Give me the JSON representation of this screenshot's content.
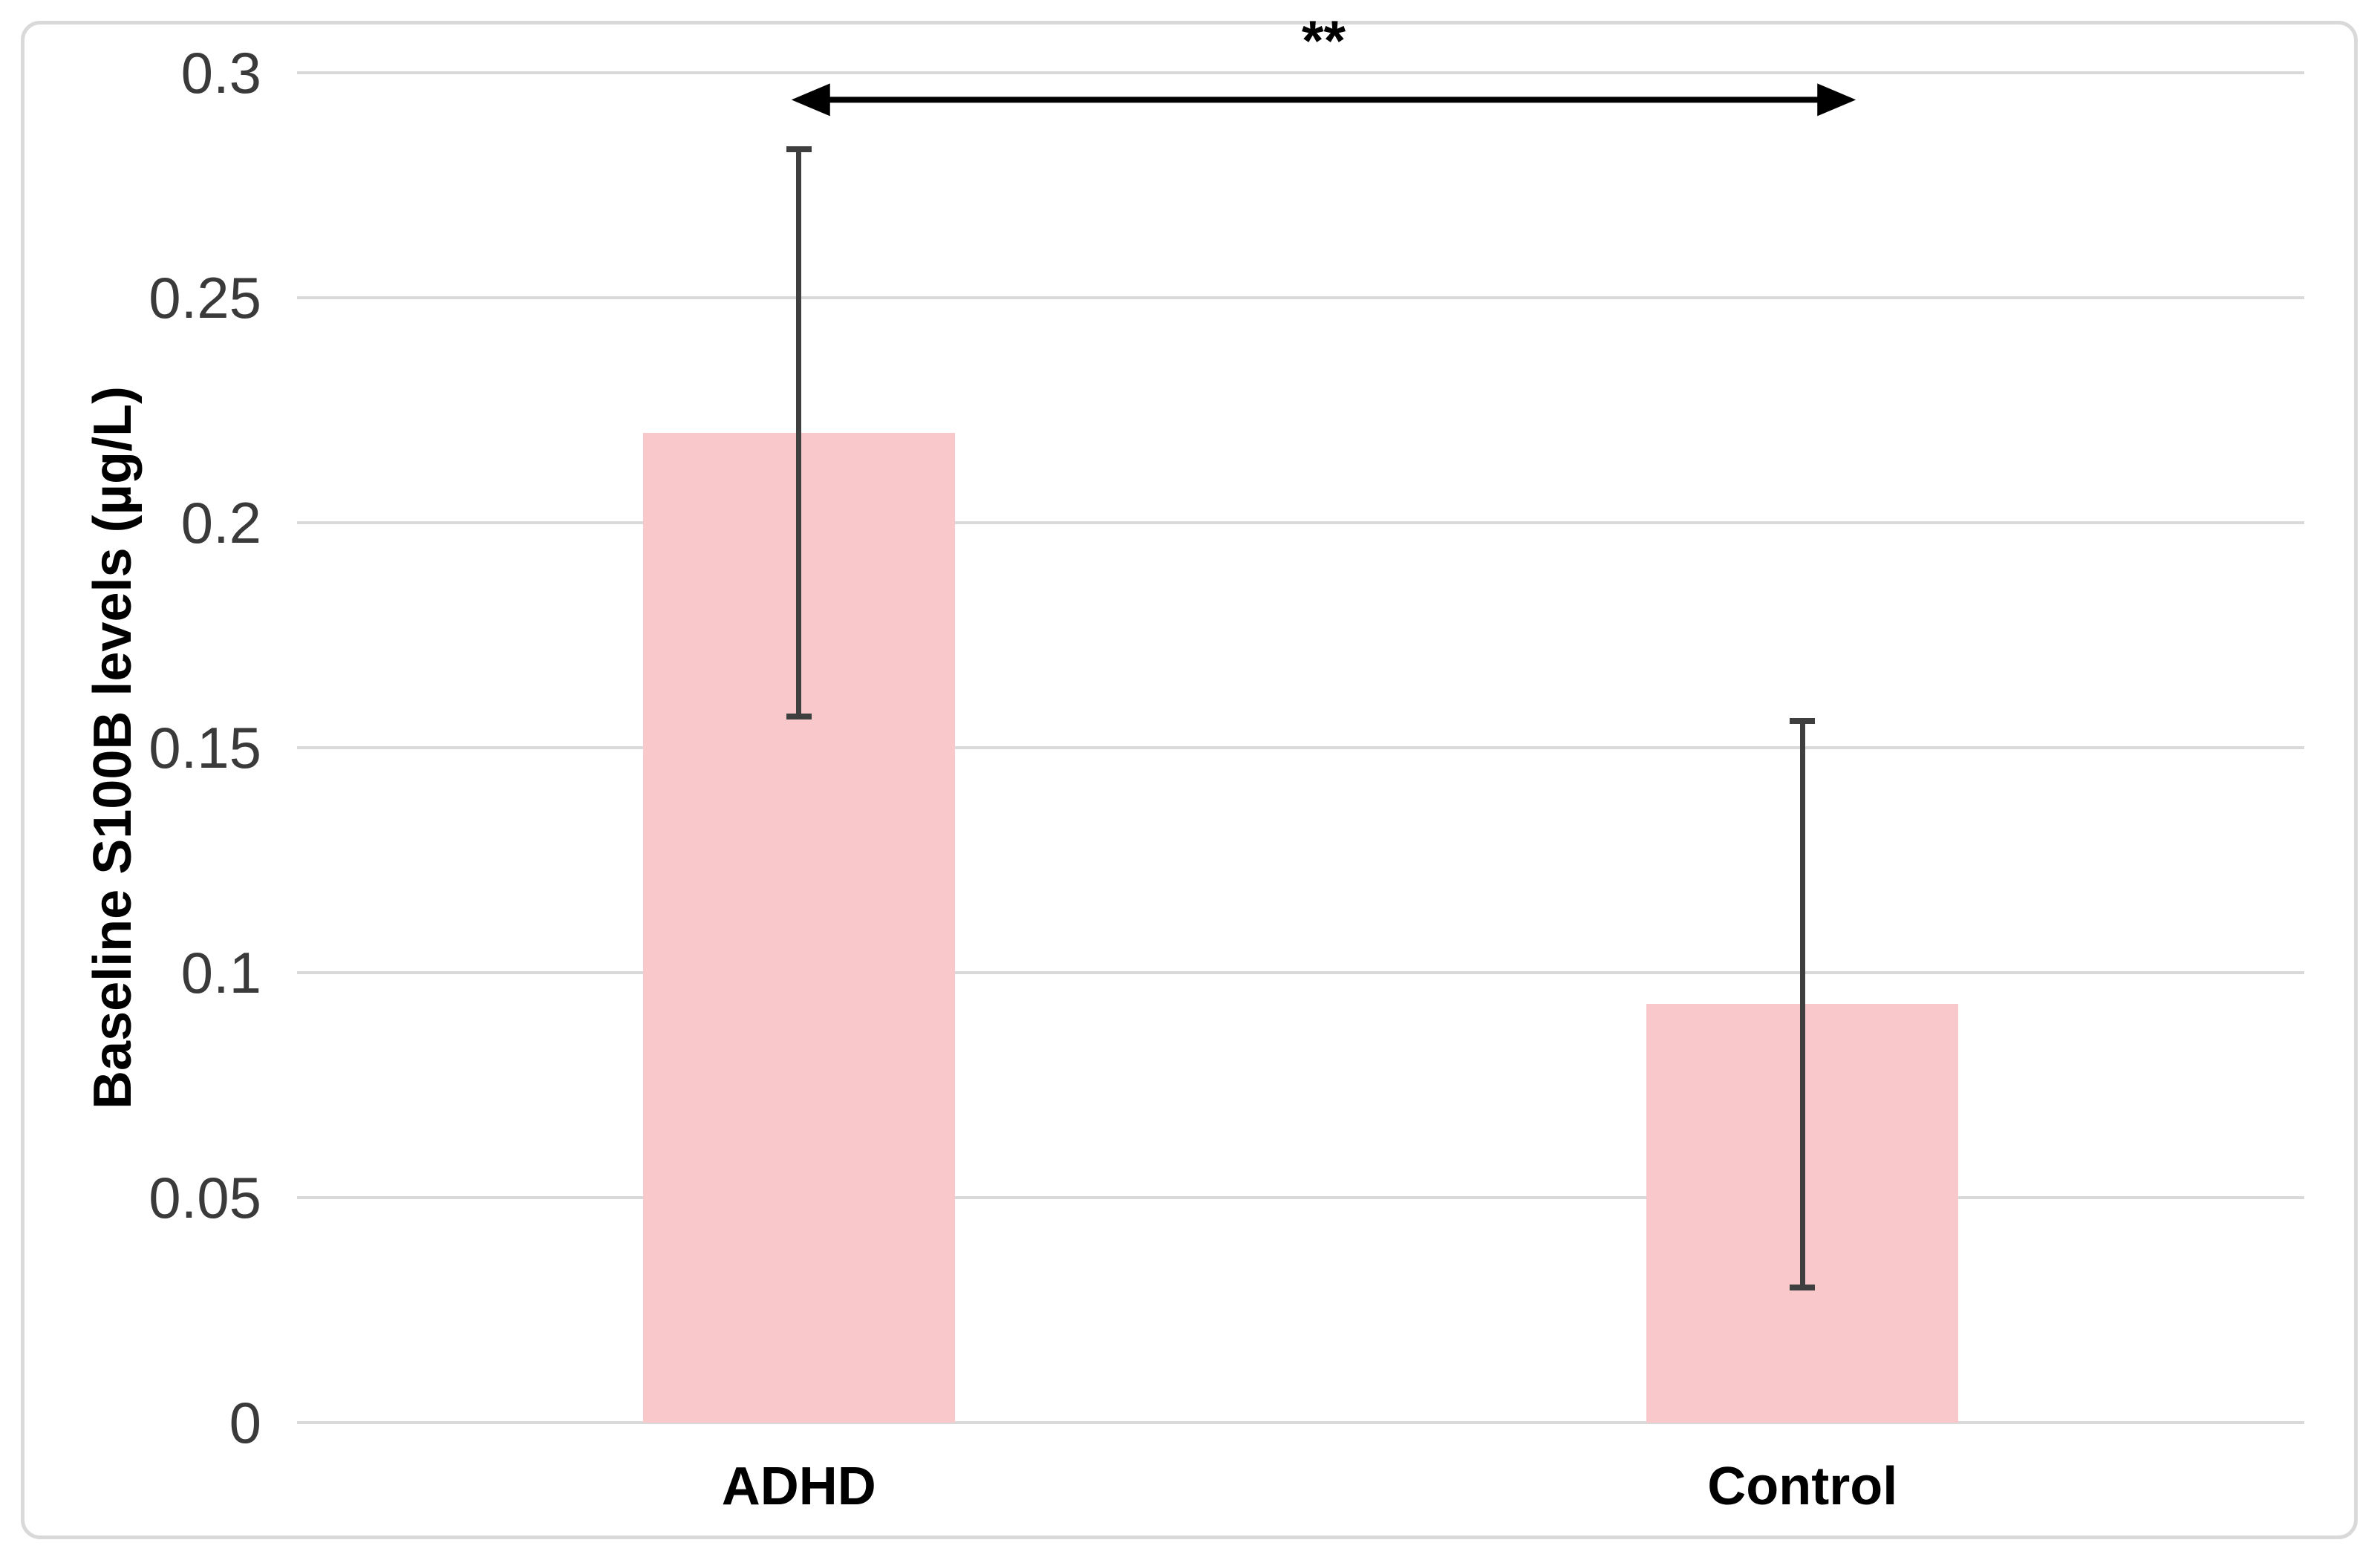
{
  "chart_data": {
    "type": "bar",
    "title": "",
    "categories": [
      "ADHD",
      "Control"
    ],
    "values": [
      0.22,
      0.093
    ],
    "error_bars": {
      "low": [
        0.157,
        0.03
      ],
      "high": [
        0.283,
        0.156
      ]
    },
    "xlabel": "",
    "ylabel": "Baseline S100B levels (µg/L)",
    "ylim": [
      0,
      0.3
    ],
    "yticks": [
      0,
      0.05,
      0.1,
      0.15,
      0.2,
      0.25,
      0.3
    ],
    "ytick_labels": [
      "0",
      "0.05",
      "0.1",
      "0.15",
      "0.2",
      "0.25",
      "0.3"
    ],
    "grid": "horizontal",
    "legend": "none",
    "significance": {
      "label": "**",
      "between": [
        "ADHD",
        "Control"
      ],
      "line_y_value": 0.294,
      "label_y_value": 0.306
    },
    "colors": {
      "bar_fill": "#f9c8cb",
      "error_bar": "#3f3f3f",
      "gridline": "#d9d9d9",
      "frame_border": "#d9d9d9",
      "arrow": "#000000",
      "tick_text": "#3a3a3a",
      "label_text": "#000000"
    }
  }
}
